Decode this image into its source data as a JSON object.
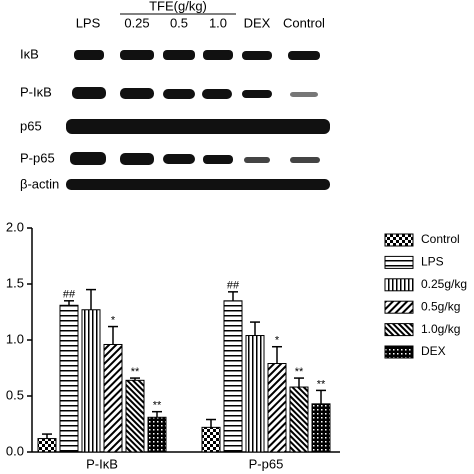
{
  "blot": {
    "header": "TFE(g/kg)",
    "lanes": [
      "LPS",
      "0.25",
      "0.5",
      "1.0",
      "DEX",
      "Control"
    ],
    "rows": [
      "IκB",
      "P-IκB",
      "p65",
      "P-p65",
      "β-actin"
    ]
  },
  "chart_data": {
    "type": "bar",
    "categories": [
      "P-IκB",
      "P-p65"
    ],
    "series": [
      {
        "name": "Control",
        "color": "#000000",
        "pattern": "checker",
        "values": [
          0.12,
          0.22
        ],
        "errors": [
          0.04,
          0.07
        ],
        "annotations": [
          null,
          null
        ]
      },
      {
        "name": "LPS",
        "color": "#000000",
        "pattern": "hstripe",
        "values": [
          1.31,
          1.35
        ],
        "errors": [
          0.04,
          0.08
        ],
        "annotations": [
          "##",
          "##"
        ]
      },
      {
        "name": "0.25g/kg",
        "color": "#000000",
        "pattern": "vstripe",
        "values": [
          1.27,
          1.04
        ],
        "errors": [
          0.18,
          0.12
        ],
        "annotations": [
          null,
          null
        ]
      },
      {
        "name": "0.5g/kg",
        "color": "#000000",
        "pattern": "diag",
        "values": [
          0.96,
          0.79
        ],
        "errors": [
          0.16,
          0.15
        ],
        "annotations": [
          "*",
          "*"
        ]
      },
      {
        "name": "1.0g/kg",
        "color": "#000000",
        "pattern": "diag2",
        "values": [
          0.64,
          0.58
        ],
        "errors": [
          0.02,
          0.08
        ],
        "annotations": [
          "**",
          "**"
        ]
      },
      {
        "name": "DEX",
        "color": "#000000",
        "pattern": "cross",
        "values": [
          0.31,
          0.43
        ],
        "errors": [
          0.05,
          0.12
        ],
        "annotations": [
          "**",
          "**"
        ]
      }
    ],
    "ylim": [
      0,
      2.0
    ],
    "yticks": [
      {
        "value": 0,
        "label": "0.0"
      },
      0.5,
      {
        "value": 1.0,
        "label": "1.0"
      },
      1.5,
      {
        "value": 2.0,
        "label": "2.0"
      }
    ]
  }
}
